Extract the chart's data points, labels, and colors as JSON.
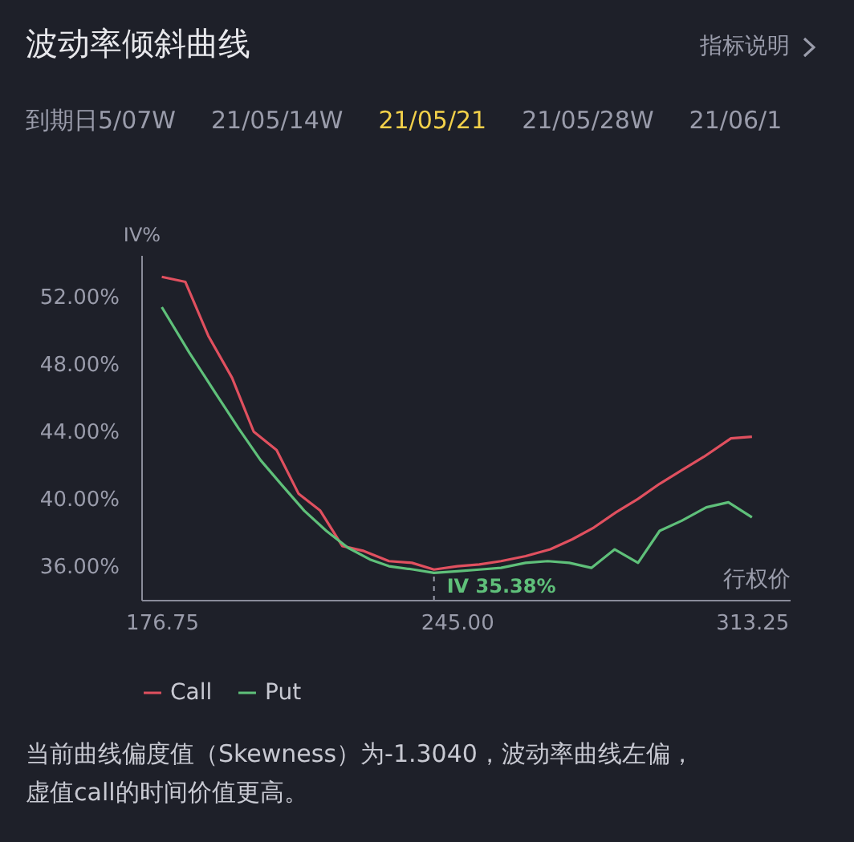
{
  "chart_data": {
    "type": "line",
    "title": "波动率倾斜曲线",
    "xlabel": "行权价",
    "ylabel": "IV%",
    "annotations": [
      "指标说明",
      "到期日",
      "5/07W",
      "21/05/14W",
      "21/05/21",
      "21/05/28W",
      "21/06/1",
      "当前曲线偏度值（Skewness）为-1.3040，波动率曲线左偏，虚值call的时间价值更高。",
      {
        "text": "IV 35.38%",
        "x": 239.7,
        "y": 35.38
      }
    ],
    "xlim": [
      172,
      322
    ],
    "xticks": [
      176.75,
      {
        "value": 245,
        "label": "245.00"
      },
      313.25
    ],
    "ylim": [
      34,
      54.5
    ],
    "yticks": [
      {
        "value": 36,
        "label": "36.00%"
      },
      {
        "value": 40,
        "label": "40.00%"
      },
      {
        "value": 44,
        "label": "44.00%"
      },
      {
        "value": 48,
        "label": "48.00%"
      },
      {
        "value": 52,
        "label": "52.00%"
      }
    ],
    "grid": false,
    "legend": "bottom",
    "series": [
      {
        "name": "Call",
        "color": "#e0505f",
        "x": [
          176.75,
          182.2,
          187.5,
          193.0,
          198.0,
          203.3,
          208.4,
          213.4,
          218.5,
          223.5,
          229.3,
          234.6,
          239.7,
          245.1,
          250.2,
          255.2,
          260.9,
          266.6,
          271.7,
          276.7,
          281.8,
          286.9,
          291.9,
          297.0,
          302.1,
          308.4,
          313.25
        ],
        "values": [
          53.2,
          52.9,
          49.7,
          47.2,
          44.0,
          42.9,
          40.3,
          39.3,
          37.2,
          36.9,
          36.3,
          36.2,
          35.8,
          36.0,
          36.1,
          36.3,
          36.6,
          37.0,
          37.6,
          38.3,
          39.2,
          40.0,
          40.9,
          41.7,
          42.5,
          43.6,
          43.7
        ]
      },
      {
        "name": "Put",
        "color": "#5fc07a",
        "x": [
          176.75,
          183.1,
          189.4,
          194.5,
          199.6,
          204.6,
          209.7,
          214.8,
          219.8,
          224.9,
          229.3,
          235.0,
          239.7,
          245.1,
          250.2,
          255.2,
          260.9,
          266.0,
          271.0,
          276.1,
          281.5,
          286.9,
          291.9,
          297.0,
          302.7,
          307.8,
          313.25
        ],
        "values": [
          51.4,
          48.7,
          46.2,
          44.2,
          42.3,
          40.8,
          39.3,
          38.1,
          37.1,
          36.4,
          36.0,
          35.8,
          35.6,
          35.7,
          35.8,
          35.9,
          36.2,
          36.3,
          36.2,
          35.9,
          37.0,
          36.2,
          38.1,
          38.7,
          39.5,
          39.8,
          38.9
        ]
      }
    ]
  }
}
